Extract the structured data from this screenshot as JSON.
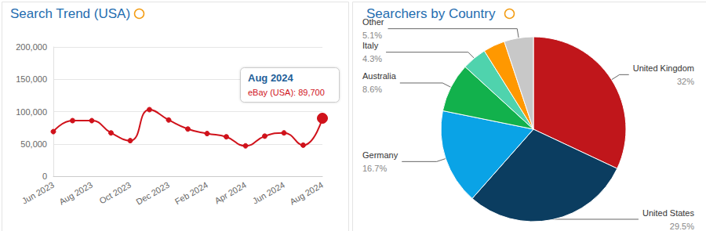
{
  "chart_data": [
    {
      "type": "line",
      "title": "Search Trend (USA)",
      "categories": [
        "Jun 2023",
        null,
        "Aug 2023",
        null,
        "Oct 2023",
        null,
        "Dec 2023",
        null,
        "Feb 2024",
        null,
        "Apr 2024",
        null,
        "Jun 2024",
        null,
        "Aug 2024"
      ],
      "values": [
        69000,
        86000,
        86000,
        67000,
        55000,
        103000,
        87000,
        73000,
        66000,
        61000,
        47000,
        62000,
        67000,
        48000,
        89700
      ],
      "color": "#d0121b",
      "marker": "circle",
      "line_style": "smooth",
      "ylim": [
        0,
        200000
      ],
      "yticks": [
        0,
        {
          "value": 50000,
          "label": "50,000"
        },
        {
          "value": 100000,
          "label": "100,000"
        },
        {
          "value": 150000,
          "label": "150,000"
        },
        {
          "value": 200000,
          "label": "200,000"
        }
      ],
      "grid": true,
      "annotations": [
        "Aug 2024",
        "eBay (USA): 89,700"
      ]
    },
    {
      "type": "pie",
      "title": "Searchers by Country",
      "categories": [
        "United Kingdom",
        "United States",
        "Germany",
        "Australia",
        "Italy",
        null,
        "Other"
      ],
      "values": [
        32,
        29.5,
        16.7,
        8.6,
        4.3,
        3.8,
        5.1
      ],
      "value_labels": [
        "32%",
        "29.5%",
        "16.7%",
        "8.6%",
        "4.3%",
        null,
        "5.1%"
      ],
      "colors": [
        "#c0161b",
        "#0b3d60",
        "#0aa3e6",
        "#12b14c",
        "#4fd3ad",
        "#ff9800",
        "#c8c8c8"
      ],
      "data_labels": true
    }
  ]
}
